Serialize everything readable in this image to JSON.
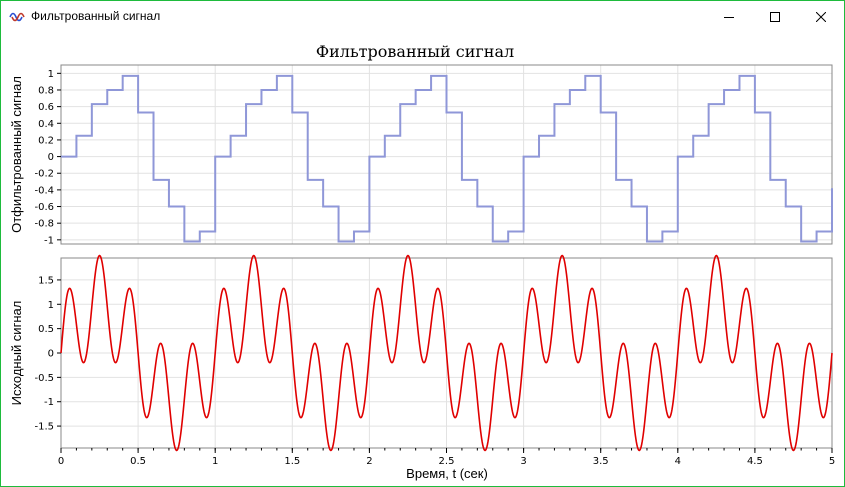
{
  "window": {
    "title": "Фильтрованный сигнал",
    "border_color": "#1ebb3c",
    "icons": {
      "app": "app-icon",
      "minimize": "minimize-icon",
      "maximize": "maximize-icon",
      "close": "close-icon"
    }
  },
  "chart_data": [
    {
      "type": "line",
      "title": "Фильтрованный сигнал",
      "ylabel": "Отфильтрованный сигнал",
      "xlim": [
        0,
        5
      ],
      "ylim": [
        -1.05,
        1.1
      ],
      "yticks": [
        -1,
        -0.8,
        -0.6,
        -0.4,
        -0.2,
        0,
        0.2,
        0.4,
        0.6,
        0.8,
        1
      ],
      "ytick_labels": [
        "-1",
        "-0.8",
        "-0.6",
        "-0.4",
        "-0.2",
        "0",
        "0.2",
        "0.4",
        "0.6",
        "0.8",
        "1"
      ],
      "grid": true,
      "series": [
        {
          "color": "#8f97d8",
          "style": "step",
          "period": 1,
          "step_x": [
            0,
            0.1,
            0.2,
            0.3,
            0.4,
            0.5,
            0.6,
            0.7,
            0.8,
            0.9
          ],
          "step_y": [
            0.0,
            0.25,
            0.63,
            0.8,
            0.97,
            0.53,
            -0.28,
            -0.6,
            -1.02,
            -0.9
          ]
        }
      ]
    },
    {
      "type": "line",
      "ylabel": "Исходный сигнал",
      "xlabel": "Время, t (сек)",
      "xlim": [
        0,
        5
      ],
      "ylim": [
        -1.95,
        1.95
      ],
      "xticks": [
        0,
        0.5,
        1,
        1.5,
        2,
        2.5,
        3,
        3.5,
        4,
        4.5,
        5
      ],
      "xtick_labels": [
        "0",
        "0.5",
        "1",
        "1.5",
        "2",
        "2.5",
        "3",
        "3.5",
        "4",
        "4.5",
        "5"
      ],
      "yticks": [
        -1.5,
        -1,
        -0.5,
        0,
        0.5,
        1,
        1.5
      ],
      "ytick_labels": [
        "-1.5",
        "-1",
        "-0.5",
        "0",
        "0.5",
        "1",
        "1.5"
      ],
      "grid": true,
      "series": [
        {
          "color": "#e00000",
          "formula": "sin(2πt) + sin(10πt) (approx.)",
          "period": 1,
          "peak": 1.9,
          "trough": -1.9
        }
      ]
    }
  ]
}
